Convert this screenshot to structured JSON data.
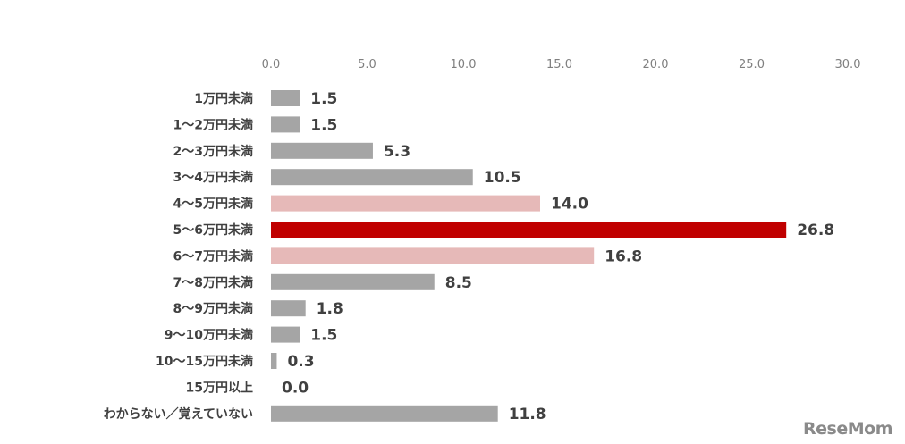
{
  "chart_data": {
    "type": "bar",
    "orientation": "horizontal",
    "title": "",
    "xlabel": "",
    "ylabel": "",
    "xlim": [
      0,
      30
    ],
    "ticks": [
      "0.0",
      "5.0",
      "10.0",
      "15.0",
      "20.0",
      "25.0",
      "30.0"
    ],
    "tick_values": [
      0,
      5,
      10,
      15,
      20,
      25,
      30
    ],
    "grid": false,
    "categories": [
      "1万円未満",
      "1～2万円未満",
      "2～3万円未満",
      "3～4万円未満",
      "4～5万円未満",
      "5～6万円未満",
      "6～7万円未満",
      "7～8万円未満",
      "8～9万円未満",
      "9～10万円未満",
      "10～15万円未満",
      "15万円以上",
      "わからない／覚えていない"
    ],
    "values": [
      1.5,
      1.5,
      5.3,
      10.5,
      14.0,
      26.8,
      16.8,
      8.5,
      1.8,
      1.5,
      0.3,
      0.0,
      11.8
    ],
    "labels": [
      "1.5",
      "1.5",
      "5.3",
      "10.5",
      "14.0",
      "26.8",
      "16.8",
      "8.5",
      "1.8",
      "1.5",
      "0.3",
      "0.0",
      "11.8"
    ],
    "colors": [
      "#a5a5a5",
      "#a5a5a5",
      "#a5a5a5",
      "#a5a5a5",
      "#e6b9b8",
      "#c00000",
      "#e6b9b8",
      "#a5a5a5",
      "#a5a5a5",
      "#a5a5a5",
      "#a5a5a5",
      "#a5a5a5",
      "#a5a5a5"
    ]
  },
  "watermark": "ReseMom"
}
